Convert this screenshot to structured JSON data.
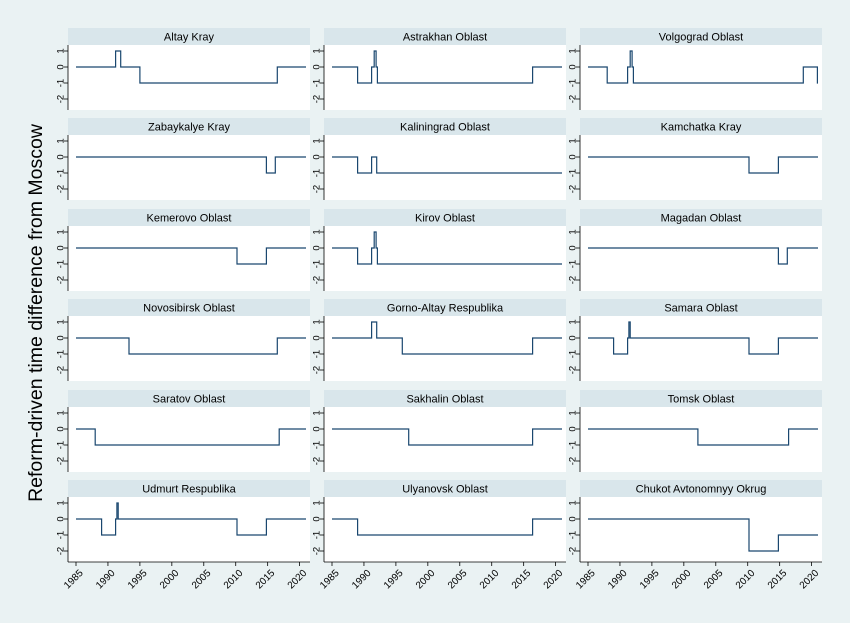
{
  "ylabel": "Reform-driven time difference from Moscow",
  "colors": {
    "background": "#eaf2f3",
    "panel": "#ffffff",
    "strip": "#d9e6eb",
    "line": "#1a476f",
    "axis": "#000000"
  },
  "chart_data": {
    "type": "line",
    "layout": "small-multiples 6x3",
    "xlabel": "",
    "ylabel": "Reform-driven time difference from Moscow",
    "xlim": [
      1985,
      2021
    ],
    "ylim": [
      -2,
      1
    ],
    "x_ticks": [
      "1985",
      "1990",
      "1995",
      "2000",
      "2005",
      "2010",
      "2015",
      "2020"
    ],
    "y_ticks": [
      "1",
      "0",
      "-1",
      "-2"
    ],
    "grid": false,
    "legend": "none",
    "panels": [
      {
        "title": "Altay Kray",
        "steps": [
          [
            1985,
            0
          ],
          [
            1991.2,
            1
          ],
          [
            1992,
            0
          ],
          [
            1995,
            -1
          ],
          [
            2016.5,
            0
          ],
          [
            2021,
            0
          ]
        ]
      },
      {
        "title": "Astrakhan Oblast",
        "steps": [
          [
            1985,
            0
          ],
          [
            1989,
            -1
          ],
          [
            1991.2,
            0
          ],
          [
            1991.6,
            1
          ],
          [
            1991.9,
            0
          ],
          [
            1992.1,
            -1
          ],
          [
            2016.4,
            0
          ],
          [
            2021,
            0
          ]
        ]
      },
      {
        "title": "Volgograd Oblast",
        "steps": [
          [
            1985,
            0
          ],
          [
            1988,
            -1
          ],
          [
            1991.2,
            0
          ],
          [
            1991.6,
            1
          ],
          [
            1991.9,
            0
          ],
          [
            1992.1,
            -1
          ],
          [
            2018.7,
            0
          ],
          [
            2020.9,
            -1
          ],
          [
            2021,
            -1
          ]
        ]
      },
      {
        "title": "Zabaykalye Kray",
        "steps": [
          [
            1985,
            0
          ],
          [
            2014.8,
            -1
          ],
          [
            2016.2,
            0
          ],
          [
            2021,
            0
          ]
        ]
      },
      {
        "title": "Kaliningrad Oblast",
        "steps": [
          [
            1985,
            0
          ],
          [
            1989,
            -1
          ],
          [
            1991.2,
            0
          ],
          [
            1992,
            -1
          ],
          [
            2021,
            -1
          ]
        ]
      },
      {
        "title": "Kamchatka Kray",
        "steps": [
          [
            1985,
            0
          ],
          [
            2010.2,
            -1
          ],
          [
            2014.8,
            0
          ],
          [
            2021,
            0
          ]
        ]
      },
      {
        "title": "Kemerovo Oblast",
        "steps": [
          [
            1985,
            0
          ],
          [
            2010.2,
            -1
          ],
          [
            2014.8,
            0
          ],
          [
            2021,
            0
          ]
        ]
      },
      {
        "title": "Kirov Oblast",
        "steps": [
          [
            1985,
            0
          ],
          [
            1989,
            -1
          ],
          [
            1991.2,
            0
          ],
          [
            1991.6,
            1
          ],
          [
            1991.9,
            0
          ],
          [
            1992.1,
            -1
          ],
          [
            2021,
            -1
          ]
        ]
      },
      {
        "title": "Magadan Oblast",
        "steps": [
          [
            1985,
            0
          ],
          [
            2014.8,
            -1
          ],
          [
            2016.2,
            0
          ],
          [
            2021,
            0
          ]
        ]
      },
      {
        "title": "Novosibirsk Oblast",
        "steps": [
          [
            1985,
            0
          ],
          [
            1993.3,
            -1
          ],
          [
            2016.5,
            0
          ],
          [
            2021,
            0
          ]
        ]
      },
      {
        "title": "Gorno-Altay Respublika",
        "steps": [
          [
            1985,
            0
          ],
          [
            1991.2,
            1
          ],
          [
            1992,
            0
          ],
          [
            1996,
            -1
          ],
          [
            2016.4,
            0
          ],
          [
            2021,
            0
          ]
        ]
      },
      {
        "title": "Samara Oblast",
        "steps": [
          [
            1985,
            0
          ],
          [
            1989,
            -1
          ],
          [
            1991.2,
            0
          ],
          [
            1991.4,
            1
          ],
          [
            1991.6,
            0
          ],
          [
            2010.2,
            -1
          ],
          [
            2014.8,
            0
          ],
          [
            2021,
            0
          ]
        ]
      },
      {
        "title": "Saratov Oblast",
        "steps": [
          [
            1985,
            0
          ],
          [
            1988,
            -1
          ],
          [
            2016.8,
            0
          ],
          [
            2021,
            0
          ]
        ]
      },
      {
        "title": "Sakhalin Oblast",
        "steps": [
          [
            1985,
            0
          ],
          [
            1997,
            -1
          ],
          [
            2016.4,
            0
          ],
          [
            2021,
            0
          ]
        ]
      },
      {
        "title": "Tomsk Oblast",
        "steps": [
          [
            1985,
            0
          ],
          [
            2002.2,
            -1
          ],
          [
            2016.4,
            0
          ],
          [
            2021,
            0
          ]
        ]
      },
      {
        "title": "Udmurt Respublika",
        "steps": [
          [
            1985,
            0
          ],
          [
            1989,
            -1
          ],
          [
            1991.2,
            0
          ],
          [
            1991.4,
            1
          ],
          [
            1991.6,
            0
          ],
          [
            2010.2,
            -1
          ],
          [
            2014.8,
            0
          ],
          [
            2021,
            0
          ]
        ]
      },
      {
        "title": "Ulyanovsk Oblast",
        "steps": [
          [
            1985,
            0
          ],
          [
            1989,
            -1
          ],
          [
            2016.4,
            0
          ],
          [
            2021,
            0
          ]
        ]
      },
      {
        "title": "Chukot Avtonomnyy Okrug",
        "steps": [
          [
            1985,
            0
          ],
          [
            2010.2,
            -2
          ],
          [
            2014.8,
            -1
          ],
          [
            2021,
            -1
          ]
        ]
      }
    ]
  }
}
